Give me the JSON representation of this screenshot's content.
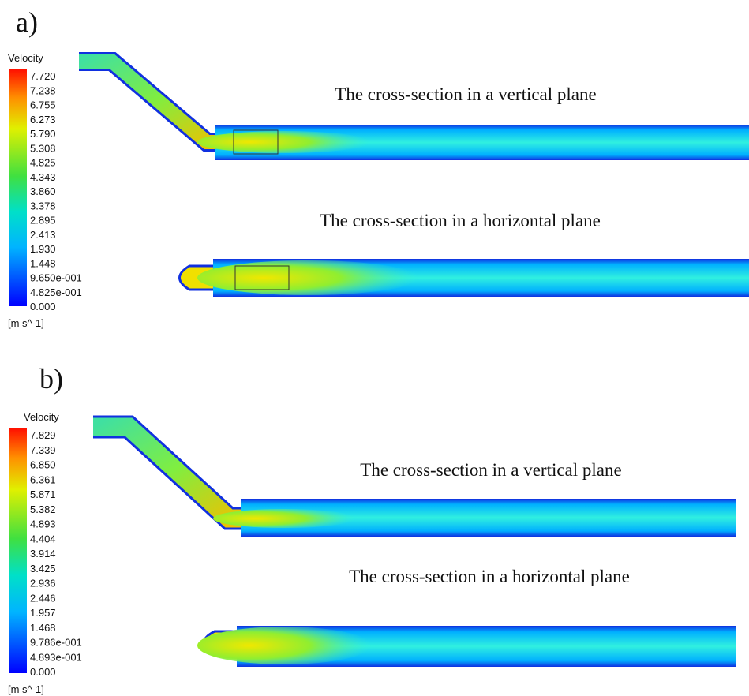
{
  "panels": [
    {
      "label": "a)",
      "legend": {
        "title": "Velocity",
        "ticks": [
          "7.720",
          "7.238",
          "6.755",
          "6.273",
          "5.790",
          "5.308",
          "4.825",
          "4.343",
          "3.860",
          "3.378",
          "2.895",
          "2.413",
          "1.930",
          "1.448",
          "9.650e-001",
          "4.825e-001",
          "0.000"
        ],
        "unit": "[m s^-1]"
      },
      "captions": [
        "The cross-section in a vertical plane",
        "The cross-section in a horizontal plane"
      ]
    },
    {
      "label": "b)",
      "legend": {
        "title": "Velocity",
        "ticks": [
          "7.829",
          "7.339",
          "6.850",
          "6.361",
          "5.871",
          "5.382",
          "4.893",
          "4.404",
          "3.914",
          "3.425",
          "2.936",
          "2.446",
          "1.957",
          "1.468",
          "9.786e-001",
          "4.893e-001",
          "0.000"
        ],
        "unit": "[m s^-1]"
      },
      "captions": [
        "The cross-section in a vertical plane",
        "The cross-section in a horizontal plane"
      ]
    }
  ]
}
